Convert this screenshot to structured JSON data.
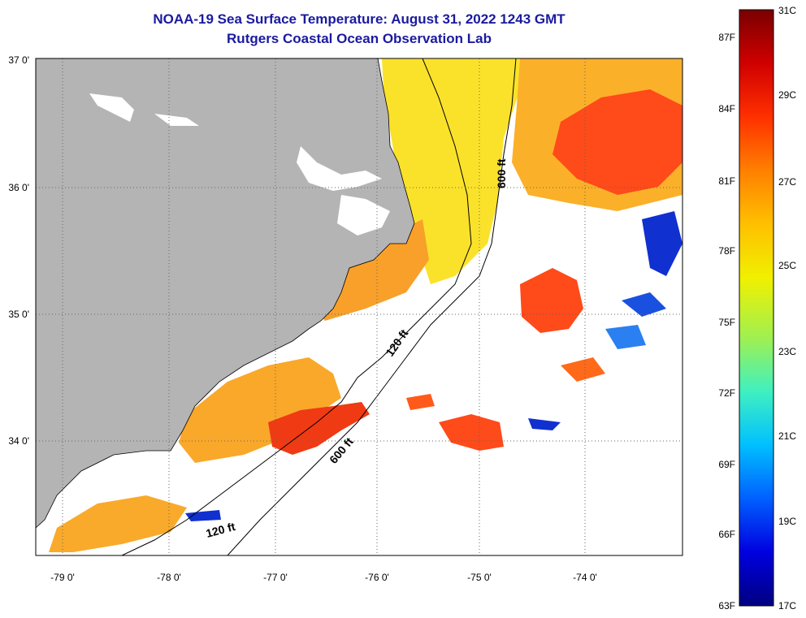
{
  "title": "NOAA-19 Sea Surface Temperature:  August 31, 2022 1243 GMT",
  "subtitle": "Rutgers Coastal Ocean Observation Lab",
  "lat_labels": [
    "37 0'",
    "36 0'",
    "35 0'",
    "34 0'"
  ],
  "lon_labels": [
    "-79 0'",
    "-78 0'",
    "-77 0'",
    "-76 0'",
    "-75 0'",
    "-74 0'"
  ],
  "isobaths": {
    "shallow": "120 ft",
    "deep": "600 ft"
  },
  "colorbar": {
    "celsius": [
      "31C",
      "29C",
      "27C",
      "25C",
      "23C",
      "21C",
      "19C",
      "17C"
    ],
    "fahrenheit": [
      "87F",
      "84F",
      "81F",
      "78F",
      "75F",
      "72F",
      "69F",
      "66F",
      "63F"
    ],
    "colors": [
      "#7a0000",
      "#d00000",
      "#ff3000",
      "#ff8000",
      "#ffc000",
      "#f0f000",
      "#a0f050",
      "#40f0c0",
      "#00c0ff",
      "#0060ff",
      "#0000e0",
      "#000080"
    ]
  },
  "colors": {
    "land": "#b4b4b4",
    "title": "#1a1aa0",
    "warm": "#ff4a1a",
    "orange": "#fba62a",
    "yellow": "#fbe22a",
    "cold": "#1030d0"
  }
}
